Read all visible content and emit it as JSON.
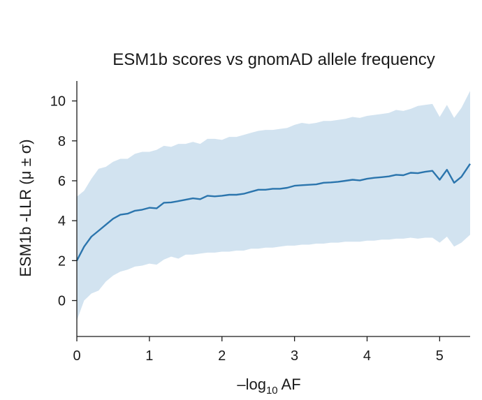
{
  "chart_data": {
    "type": "area",
    "title": "ESM1b scores vs gnomAD allele frequency",
    "xlabel_main": "–log",
    "xlabel_sub": "10",
    "xlabel_tail": " AF",
    "ylabel": "ESM1b -LLR (μ ± σ)",
    "xlim": [
      0,
      5.42
    ],
    "ylim": [
      -1.8,
      11.0
    ],
    "xticks": [
      0,
      1,
      2,
      3,
      4,
      5
    ],
    "yticks": [
      0,
      2,
      4,
      6,
      8,
      10
    ],
    "grid": false,
    "colors": {
      "line": "#2b75ad",
      "band": "#d2e3f0",
      "axis": "#1a1a1a"
    },
    "series": [
      {
        "x": [
          0,
          0.1,
          0.2,
          0.3,
          0.4,
          0.5,
          0.6,
          0.7,
          0.8,
          0.9,
          1.0,
          1.1,
          1.2,
          1.3,
          1.4,
          1.5,
          1.6,
          1.7,
          1.8,
          1.9,
          2.0,
          2.1,
          2.2,
          2.3,
          2.4,
          2.5,
          2.6,
          2.7,
          2.8,
          2.9,
          3.0,
          3.1,
          3.2,
          3.3,
          3.4,
          3.5,
          3.6,
          3.7,
          3.8,
          3.9,
          4.0,
          4.1,
          4.2,
          4.3,
          4.4,
          4.5,
          4.6,
          4.7,
          4.8,
          4.9,
          5.0,
          5.1,
          5.2,
          5.3,
          5.42
        ],
        "mean": [
          2.0,
          2.7,
          3.2,
          3.5,
          3.8,
          4.1,
          4.3,
          4.35,
          4.5,
          4.55,
          4.65,
          4.62,
          4.9,
          4.92,
          4.98,
          5.05,
          5.12,
          5.08,
          5.25,
          5.22,
          5.25,
          5.3,
          5.3,
          5.35,
          5.45,
          5.55,
          5.55,
          5.6,
          5.6,
          5.65,
          5.75,
          5.78,
          5.8,
          5.82,
          5.9,
          5.92,
          5.95,
          6.0,
          6.05,
          6.02,
          6.1,
          6.15,
          6.18,
          6.22,
          6.3,
          6.28,
          6.4,
          6.38,
          6.45,
          6.5,
          6.05,
          6.55,
          5.9,
          6.2,
          6.85
        ],
        "upper": [
          5.2,
          5.5,
          6.1,
          6.6,
          6.7,
          6.95,
          7.1,
          7.1,
          7.35,
          7.45,
          7.45,
          7.55,
          7.75,
          7.7,
          7.85,
          7.85,
          7.95,
          7.85,
          8.1,
          8.1,
          8.05,
          8.2,
          8.2,
          8.3,
          8.4,
          8.5,
          8.55,
          8.55,
          8.6,
          8.65,
          8.8,
          8.9,
          8.85,
          8.9,
          9.0,
          9.0,
          9.05,
          9.1,
          9.2,
          9.15,
          9.25,
          9.3,
          9.35,
          9.4,
          9.55,
          9.5,
          9.6,
          9.75,
          9.8,
          9.85,
          9.2,
          9.8,
          9.15,
          9.65,
          10.5
        ],
        "lower": [
          -1.0,
          0.0,
          0.35,
          0.5,
          0.95,
          1.25,
          1.45,
          1.55,
          1.7,
          1.75,
          1.85,
          1.8,
          2.05,
          2.2,
          2.1,
          2.3,
          2.3,
          2.35,
          2.4,
          2.4,
          2.45,
          2.45,
          2.5,
          2.5,
          2.6,
          2.6,
          2.65,
          2.65,
          2.7,
          2.75,
          2.75,
          2.8,
          2.8,
          2.85,
          2.85,
          2.9,
          2.9,
          2.95,
          2.95,
          2.95,
          3.0,
          3.0,
          3.05,
          3.05,
          3.1,
          3.1,
          3.15,
          3.1,
          3.15,
          3.15,
          2.9,
          3.2,
          2.7,
          2.9,
          3.3
        ]
      }
    ]
  }
}
